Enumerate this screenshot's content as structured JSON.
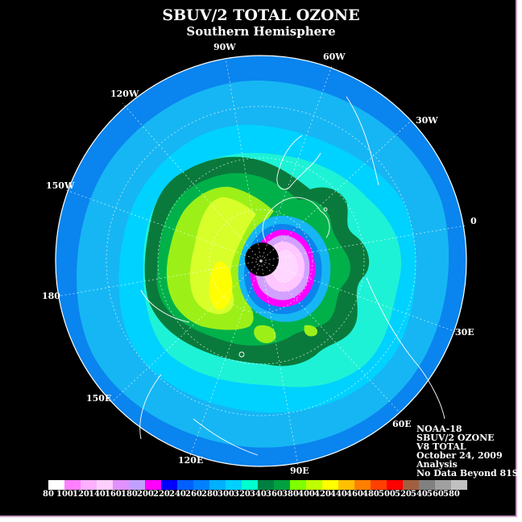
{
  "header": {
    "title": "SBUV/2 TOTAL OZONE",
    "subtitle": "Southern Hemisphere"
  },
  "longitude_labels": {
    "lon_90w": "90W",
    "lon_60w": "60W",
    "lon_120w": "120W",
    "lon_30w": "30W",
    "lon_150w": "150W",
    "lon_0": "0",
    "lon_180": "180",
    "lon_30e": "30E",
    "lon_150e": "150E",
    "lon_60e": "60E",
    "lon_120e": "120E",
    "lon_90e": "90E"
  },
  "info": {
    "line1": "NOAA-18",
    "line2": "SBUV/2 OZONE",
    "line3": "V8 TOTAL",
    "line4": "October 24, 2009",
    "line5": "Analysis",
    "line6": "No Data Beyond 81S"
  },
  "colorbar": {
    "colors": [
      "#ffffff",
      "#ff80ff",
      "#ffb0ff",
      "#ffd0ff",
      "#e090ff",
      "#c0a0ff",
      "#ff00ff",
      "#0000ff",
      "#0060ff",
      "#0080ff",
      "#00b0ff",
      "#00d0ff",
      "#00ffd0",
      "#008040",
      "#00a040",
      "#80ff00",
      "#c0ff00",
      "#ffff00",
      "#ffc000",
      "#ff8000",
      "#ff4000",
      "#ff0000",
      "#a06040",
      "#808080",
      "#a0a0a0",
      "#c0c0c0"
    ],
    "ticks": [
      "80",
      "100",
      "120",
      "140",
      "160",
      "180",
      "200",
      "220",
      "240",
      "260",
      "280",
      "300",
      "320",
      "340",
      "360",
      "380",
      "400",
      "420",
      "440",
      "460",
      "480",
      "500",
      "520",
      "540",
      "560",
      "580"
    ]
  },
  "map_colors": {
    "background": "#000000",
    "level_260": "#0a84ee",
    "level_280": "#16b6f4",
    "level_300": "#00d2ff",
    "level_320": "#1ef2d6",
    "level_340": "#0a7a3c",
    "level_360": "#00b14a",
    "level_380": "#9cf018",
    "level_400": "#d8ff2a",
    "level_420": "#ffff00",
    "hole_magenta": "#ff00ff",
    "hole_violet": "#d2a0ff",
    "hole_pink": "#ffc6ff",
    "hole_light": "#ffd6ff"
  }
}
